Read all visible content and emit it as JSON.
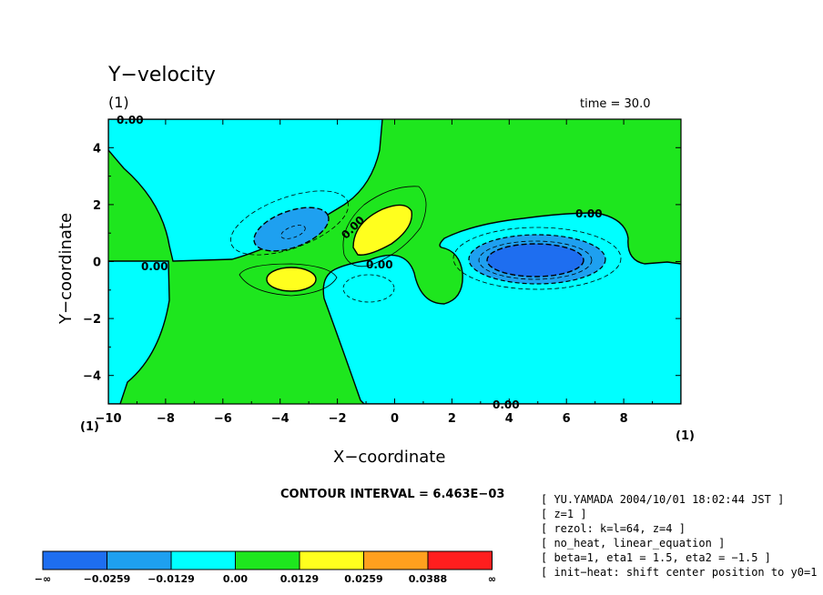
{
  "chart_data": {
    "type": "heatmap",
    "title": "Y−velocity",
    "panel_label": "(1)",
    "time_label": "time = 30.0",
    "xlabel": "X−coordinate",
    "ylabel": "Y−coordinate",
    "xlim": [
      -10,
      10
    ],
    "ylim": [
      -5,
      5
    ],
    "x_ticks": [
      -10,
      -8,
      -6,
      -4,
      -2,
      0,
      2,
      4,
      6,
      8
    ],
    "x_tick_labels": [
      "−10",
      "−8",
      "−6",
      "−4",
      "−2",
      "0",
      "2",
      "4",
      "6",
      "8"
    ],
    "y_ticks": [
      -4,
      -2,
      0,
      2,
      4
    ],
    "y_tick_labels": [
      "−4",
      "−2",
      "0",
      "2",
      "4"
    ],
    "corner_label_left": "(1)",
    "corner_label_right": "(1)",
    "contour_interval_text": "CONTOUR INTERVAL = 6.463E−03",
    "contour_labels": [
      "0.00",
      "0.00",
      "0.00",
      "0.00",
      "0.00",
      "0.00"
    ],
    "features": [
      {
        "sign": "negative",
        "x": 4.5,
        "y": 0.0,
        "min_level": -0.0259
      },
      {
        "sign": "negative",
        "x": -3.5,
        "y": 1.0,
        "min_level": -0.0129
      },
      {
        "sign": "positive",
        "x": -0.5,
        "y": 1.2,
        "max_level": 0.0129
      },
      {
        "sign": "positive",
        "x": -3.5,
        "y": -0.6,
        "max_level": 0.0129
      }
    ],
    "colorbar": {
      "colors": [
        "#1e6ef0",
        "#1ea0f0",
        "#00ffff",
        "#1ee61e",
        "#ffff1e",
        "#ffa01e",
        "#ff1e1e"
      ],
      "labels": [
        "−∞",
        "−0.0259",
        "−0.0129",
        "0.00",
        "0.0129",
        "0.0259",
        "0.0388",
        "∞"
      ]
    }
  },
  "info_lines": [
    "[ YU.YAMADA 2004/10/01 18:02:44 JST ]",
    "[ z=1 ]",
    "[ rezol: k=l=64, z=4 ]",
    "[ no_heat, linear_equation ]",
    "[ beta=1, eta1 = 1.5, eta2 = −1.5 ]",
    "[ init−heat: shift center position to y0=1 ]"
  ]
}
